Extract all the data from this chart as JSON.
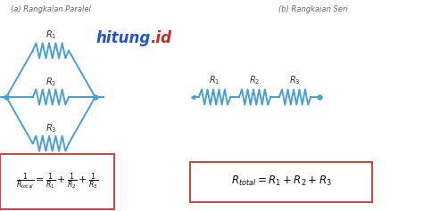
{
  "bg_color": "#ffffff",
  "circuit_color": "#4a9fd4",
  "title_left": "(a) Rangkaian Paralel",
  "title_right": "(b) Rangkaian Seri",
  "logo_hitung_color": "#2255cc",
  "logo_id_color": "#cc2222",
  "formula_box_color": "#cc3333",
  "figsize": [
    4.74,
    2.37
  ],
  "dpi": 100
}
